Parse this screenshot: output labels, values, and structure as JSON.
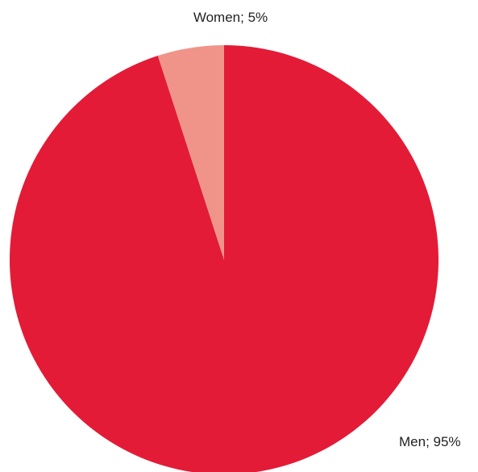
{
  "chart_data": {
    "type": "pie",
    "title": "",
    "slices": [
      {
        "name": "Men",
        "value": 95,
        "label": "Men; 95%",
        "color": "#e31b37"
      },
      {
        "name": "Women",
        "value": 5,
        "label": "Women; 5%",
        "color": "#f0948a"
      }
    ],
    "start": "top",
    "direction": "clockwise",
    "legend": "none"
  }
}
